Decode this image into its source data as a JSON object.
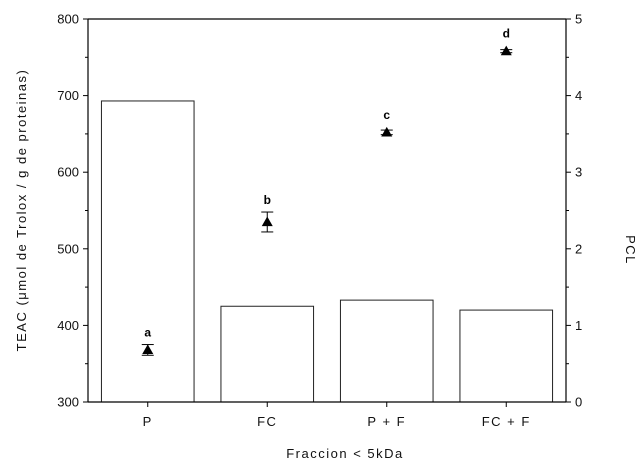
{
  "chart_data": {
    "type": "bar",
    "xlabel": "Fraccion < 5kDa",
    "ylabel": "TEAC (μmol de Trolox / g de proteinas)",
    "y2label": "PCL",
    "categories": [
      "P",
      "FC",
      "P + F",
      "FC + F"
    ],
    "ylim": [
      300,
      800
    ],
    "yticks": [
      300,
      400,
      500,
      600,
      700,
      800
    ],
    "y2lim": [
      0,
      5
    ],
    "y2ticks": [
      0,
      1,
      2,
      3,
      4,
      5
    ],
    "series": [
      {
        "type": "bar",
        "axis": "left",
        "values": [
          693,
          425,
          433,
          420
        ]
      },
      {
        "type": "scatter",
        "axis": "right",
        "marker": "triangle",
        "values": [
          0.68,
          2.35,
          3.52,
          4.58
        ],
        "errors": [
          0.07,
          0.13,
          0.03,
          0.02
        ],
        "letters": [
          "a",
          "b",
          "c",
          "d"
        ]
      }
    ],
    "grid": false,
    "legend": "none"
  }
}
